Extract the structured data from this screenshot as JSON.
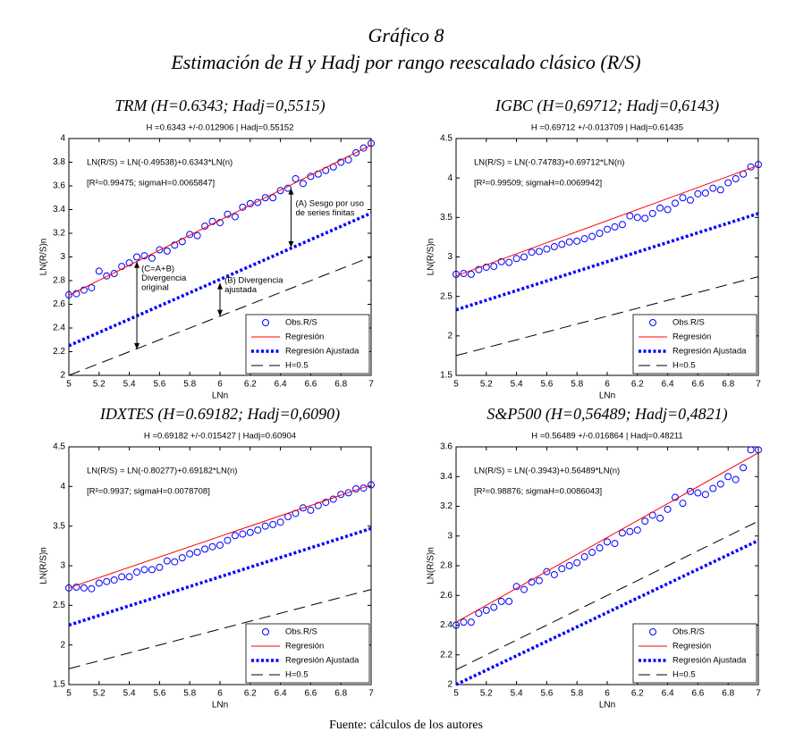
{
  "title": "Gráfico 8",
  "subtitle": "Estimación de H y Hadj por rango reescalado clásico (R/S)",
  "source": "Fuente: cálculos de los autores",
  "chart_data": [
    {
      "type": "line",
      "title": "TRM (H=0.6343; Hadj=0,5515)",
      "subtitle": "H =0.6343 +/-0.012906 | Hadj=0.55152",
      "equation": "LN(R/S) = LN(-0.49538)+0.6343*LN(n)",
      "fit": "[R²=0.99475; sigmaH=0.0065847]",
      "annotations": [
        "(A) Sesgo por uso",
        "de series finitas",
        "(C=A+B)",
        "Divergencia",
        "original",
        "(B) Divergencia",
        "ajustada"
      ],
      "xlabel": "LNn",
      "ylabel": "LN(R/S)n",
      "legend": "lower right",
      "xlim": [
        5,
        7
      ],
      "xticks": [
        5,
        5.2,
        5.4,
        5.6,
        5.8,
        6,
        6.2,
        6.4,
        6.6,
        6.8,
        7
      ],
      "ylim": [
        2,
        4
      ],
      "yticks": [
        2,
        2.2,
        2.4,
        2.6,
        2.8,
        3,
        3.2,
        3.4,
        3.6,
        3.8,
        4
      ],
      "x": [
        5,
        5.05,
        5.1,
        5.15,
        5.2,
        5.25,
        5.3,
        5.35,
        5.4,
        5.45,
        5.5,
        5.55,
        5.6,
        5.65,
        5.7,
        5.75,
        5.8,
        5.85,
        5.9,
        5.95,
        6,
        6.05,
        6.1,
        6.15,
        6.2,
        6.25,
        6.3,
        6.35,
        6.4,
        6.45,
        6.5,
        6.55,
        6.6,
        6.65,
        6.7,
        6.75,
        6.8,
        6.85,
        6.9,
        6.95,
        7
      ],
      "series": [
        {
          "name": "Obs.R/S",
          "color": "#0000ff",
          "style": "marker",
          "values": [
            2.68,
            2.69,
            2.72,
            2.74,
            2.88,
            2.84,
            2.86,
            2.92,
            2.95,
            3.0,
            3.01,
            2.99,
            3.06,
            3.05,
            3.1,
            3.13,
            3.19,
            3.18,
            3.26,
            3.3,
            3.29,
            3.36,
            3.34,
            3.42,
            3.45,
            3.46,
            3.5,
            3.5,
            3.56,
            3.58,
            3.66,
            3.62,
            3.68,
            3.7,
            3.73,
            3.76,
            3.8,
            3.82,
            3.88,
            3.92,
            3.96
          ]
        },
        {
          "name": "Regresión",
          "color": "#ff0000",
          "style": "solid",
          "x": [
            5,
            7
          ],
          "values": [
            2.676,
            3.945
          ]
        },
        {
          "name": "Regresión Ajustada",
          "color": "#0000ff",
          "style": "dotted",
          "x": [
            5,
            7
          ],
          "values": [
            2.25,
            3.37
          ]
        },
        {
          "name": "H=0.5",
          "color": "#000000",
          "style": "dashed",
          "x": [
            5,
            7
          ],
          "values": [
            2.0,
            3.0
          ]
        }
      ]
    },
    {
      "type": "line",
      "title": "IGBC (H=0,69712; Hadj=0,6143)",
      "subtitle": "H =0.69712 +/-0.013709 | Hadj=0.61435",
      "equation": "LN(R/S) = LN(-0.74783)+0.69712*LN(n)",
      "fit": "[R²=0.99509; sigmaH=0.0069942]",
      "xlabel": "LNn",
      "ylabel": "LN(R/S)n",
      "legend": "lower right",
      "xlim": [
        5,
        7
      ],
      "xticks": [
        5,
        5.2,
        5.4,
        5.6,
        5.8,
        6,
        6.2,
        6.4,
        6.6,
        6.8,
        7
      ],
      "ylim": [
        1.5,
        4.5
      ],
      "yticks": [
        1.5,
        2,
        2.5,
        3,
        3.5,
        4,
        4.5
      ],
      "x": [
        5,
        5.05,
        5.1,
        5.15,
        5.2,
        5.25,
        5.3,
        5.35,
        5.4,
        5.45,
        5.5,
        5.55,
        5.6,
        5.65,
        5.7,
        5.75,
        5.8,
        5.85,
        5.9,
        5.95,
        6,
        6.05,
        6.1,
        6.15,
        6.2,
        6.25,
        6.3,
        6.35,
        6.4,
        6.45,
        6.5,
        6.55,
        6.6,
        6.65,
        6.7,
        6.75,
        6.8,
        6.85,
        6.9,
        6.95,
        7
      ],
      "series": [
        {
          "name": "Obs.R/S",
          "color": "#0000ff",
          "style": "marker",
          "values": [
            2.78,
            2.79,
            2.78,
            2.84,
            2.87,
            2.88,
            2.94,
            2.93,
            2.98,
            3.0,
            3.06,
            3.07,
            3.1,
            3.13,
            3.16,
            3.19,
            3.2,
            3.23,
            3.26,
            3.3,
            3.35,
            3.38,
            3.41,
            3.52,
            3.5,
            3.49,
            3.55,
            3.62,
            3.6,
            3.68,
            3.75,
            3.72,
            3.8,
            3.81,
            3.87,
            3.85,
            3.94,
            3.99,
            4.05,
            4.14,
            4.17
          ]
        },
        {
          "name": "Regresión",
          "color": "#ff0000",
          "style": "solid",
          "x": [
            5,
            7
          ],
          "values": [
            2.76,
            4.16
          ]
        },
        {
          "name": "Regresión Ajustada",
          "color": "#0000ff",
          "style": "dotted",
          "x": [
            5,
            7
          ],
          "values": [
            2.33,
            3.55
          ]
        },
        {
          "name": "H=0.5",
          "color": "#000000",
          "style": "dashed",
          "x": [
            5,
            7
          ],
          "values": [
            1.75,
            2.75
          ]
        }
      ]
    },
    {
      "type": "line",
      "title": "IDXTES (H=0.69182; Hadj=0,6090)",
      "subtitle": "H =0.69182 +/-0.015427 | Hadj=0.60904",
      "equation": "LN(R/S) = LN(-0.80277)+0.69182*LN(n)",
      "fit": "[R²=0.9937; sigmaH=0.0078708]",
      "xlabel": "LNn",
      "ylabel": "LN(R/S)n",
      "legend": "lower right",
      "xlim": [
        5,
        7
      ],
      "xticks": [
        5,
        5.2,
        5.4,
        5.6,
        5.8,
        6,
        6.2,
        6.4,
        6.6,
        6.8,
        7
      ],
      "ylim": [
        1.5,
        4.5
      ],
      "yticks": [
        1.5,
        2,
        2.5,
        3,
        3.5,
        4,
        4.5
      ],
      "x": [
        5,
        5.05,
        5.1,
        5.15,
        5.2,
        5.25,
        5.3,
        5.35,
        5.4,
        5.45,
        5.5,
        5.55,
        5.6,
        5.65,
        5.7,
        5.75,
        5.8,
        5.85,
        5.9,
        5.95,
        6,
        6.05,
        6.1,
        6.15,
        6.2,
        6.25,
        6.3,
        6.35,
        6.4,
        6.45,
        6.5,
        6.55,
        6.6,
        6.65,
        6.7,
        6.75,
        6.8,
        6.85,
        6.9,
        6.95,
        7
      ],
      "series": [
        {
          "name": "Obs.R/S",
          "color": "#0000ff",
          "style": "marker",
          "values": [
            2.72,
            2.73,
            2.72,
            2.71,
            2.78,
            2.8,
            2.82,
            2.86,
            2.86,
            2.92,
            2.95,
            2.95,
            2.98,
            3.06,
            3.05,
            3.1,
            3.15,
            3.17,
            3.21,
            3.24,
            3.26,
            3.32,
            3.38,
            3.4,
            3.42,
            3.45,
            3.5,
            3.52,
            3.55,
            3.62,
            3.66,
            3.73,
            3.7,
            3.76,
            3.8,
            3.84,
            3.9,
            3.92,
            3.97,
            3.98,
            4.02
          ]
        },
        {
          "name": "Regresión",
          "color": "#ff0000",
          "style": "solid",
          "x": [
            5,
            7
          ],
          "values": [
            2.72,
            4.02
          ]
        },
        {
          "name": "Regresión Ajustada",
          "color": "#0000ff",
          "style": "dotted",
          "x": [
            5,
            7
          ],
          "values": [
            2.25,
            3.47
          ]
        },
        {
          "name": "H=0.5",
          "color": "#000000",
          "style": "dashed",
          "x": [
            5,
            7
          ],
          "values": [
            1.7,
            2.7
          ]
        }
      ]
    },
    {
      "type": "line",
      "title": "S&P500 (H=0,56489; Hadj=0,4821)",
      "subtitle": "H =0.56489 +/-0.016864 | Hadj=0.48211",
      "equation": "LN(R/S) = LN(-0.3943)+0.56489*LN(n)",
      "fit": "[R²=0.98876; sigmaH=0.0086043]",
      "xlabel": "LNn",
      "ylabel": "LN(R/S)n",
      "legend": "lower right",
      "xlim": [
        5,
        7
      ],
      "xticks": [
        5,
        5.2,
        5.4,
        5.6,
        5.8,
        6,
        6.2,
        6.4,
        6.6,
        6.8,
        7
      ],
      "ylim": [
        2,
        3.6
      ],
      "yticks": [
        2,
        2.2,
        2.4,
        2.6,
        2.8,
        3,
        3.2,
        3.4,
        3.6
      ],
      "x": [
        5,
        5.05,
        5.1,
        5.15,
        5.2,
        5.25,
        5.3,
        5.35,
        5.4,
        5.45,
        5.5,
        5.55,
        5.6,
        5.65,
        5.7,
        5.75,
        5.8,
        5.85,
        5.9,
        5.95,
        6,
        6.05,
        6.1,
        6.15,
        6.2,
        6.25,
        6.3,
        6.35,
        6.4,
        6.45,
        6.5,
        6.55,
        6.6,
        6.65,
        6.7,
        6.75,
        6.8,
        6.85,
        6.9,
        6.95,
        7
      ],
      "series": [
        {
          "name": "Obs.R/S",
          "color": "#0000ff",
          "style": "marker",
          "values": [
            2.4,
            2.42,
            2.42,
            2.48,
            2.5,
            2.52,
            2.56,
            2.56,
            2.66,
            2.64,
            2.69,
            2.7,
            2.76,
            2.74,
            2.78,
            2.8,
            2.82,
            2.86,
            2.89,
            2.92,
            2.96,
            2.95,
            3.02,
            3.03,
            3.04,
            3.1,
            3.14,
            3.12,
            3.18,
            3.26,
            3.22,
            3.3,
            3.29,
            3.28,
            3.32,
            3.35,
            3.4,
            3.38,
            3.46,
            3.58,
            3.58
          ]
        },
        {
          "name": "Regresión",
          "color": "#ff0000",
          "style": "solid",
          "x": [
            5,
            7
          ],
          "values": [
            2.42,
            3.56
          ]
        },
        {
          "name": "Regresión Ajustada",
          "color": "#0000ff",
          "style": "dotted",
          "x": [
            5,
            7
          ],
          "values": [
            2.0,
            2.97
          ]
        },
        {
          "name": "H=0.5",
          "color": "#000000",
          "style": "dashed",
          "x": [
            5,
            7
          ],
          "values": [
            2.1,
            3.1
          ]
        }
      ]
    }
  ]
}
